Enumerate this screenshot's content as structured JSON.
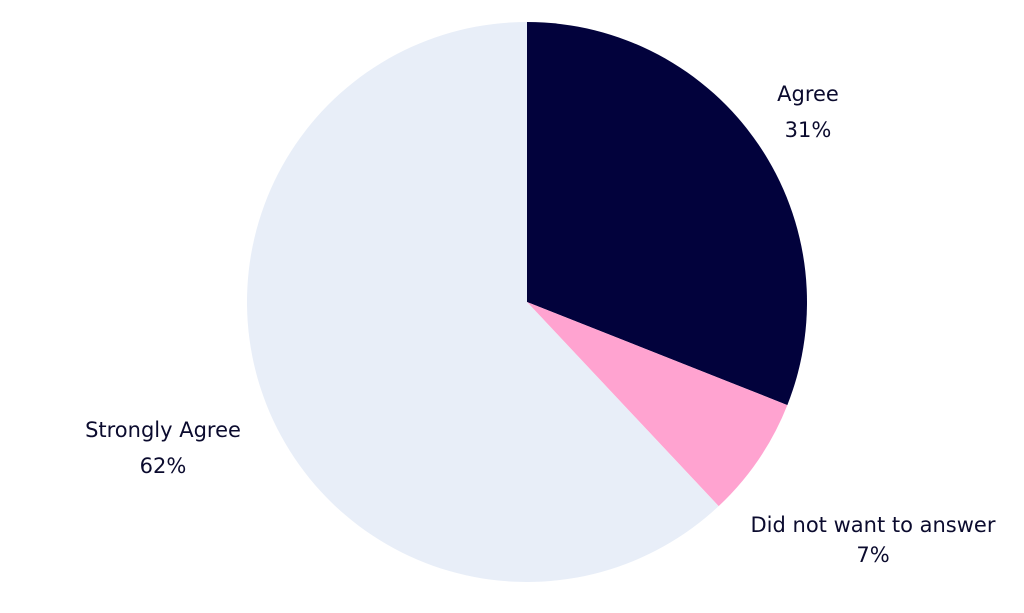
{
  "chart_data": {
    "type": "pie",
    "title": "",
    "slices": [
      {
        "label": "Agree",
        "value": 31,
        "display": "31%",
        "color": "#02023c"
      },
      {
        "label": "Did not want to answer",
        "value": 7,
        "display": "7%",
        "color": "#ffa3d0"
      },
      {
        "label": "Strongly Agree",
        "value": 62,
        "display": "62%",
        "color": "#e8eef8"
      }
    ],
    "start_angle": "12 o'clock",
    "direction": "clockwise",
    "legend": "none",
    "labels": "outside"
  }
}
